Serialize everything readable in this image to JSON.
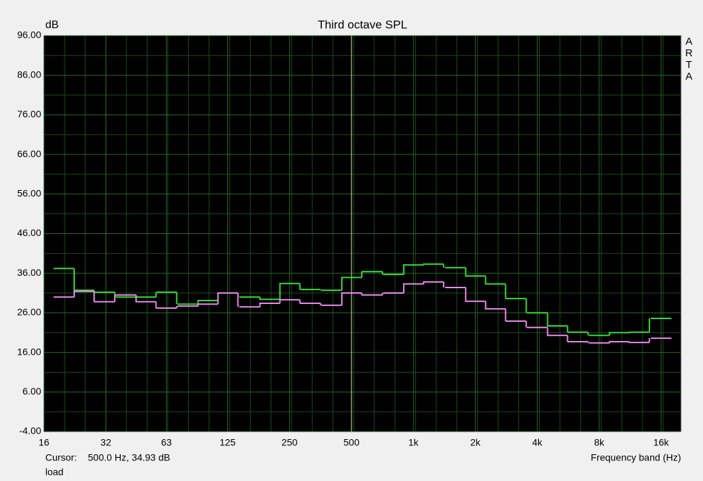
{
  "chart_data": {
    "type": "line",
    "drawstyle": "steps-mid",
    "title": "Third octave SPL",
    "y_label": "dB",
    "x_label": "Frequency band (Hz)",
    "side_label": "ARTA",
    "x_scale": "log",
    "grid": true,
    "x": [
      20,
      25,
      31.5,
      40,
      50,
      63,
      80,
      100,
      125,
      160,
      200,
      250,
      315,
      400,
      500,
      630,
      800,
      1000,
      1250,
      1600,
      2000,
      2500,
      3150,
      4000,
      5000,
      6300,
      8000,
      10000,
      12500,
      16000
    ],
    "series": [
      {
        "color": "#33dd33",
        "values": [
          37.2,
          31.7,
          31.2,
          30.0,
          30.0,
          31.2,
          28.2,
          29.1,
          31.0,
          30.0,
          29.4,
          33.4,
          31.9,
          31.7,
          34.93,
          36.4,
          35.7,
          38.1,
          38.3,
          37.4,
          35.3,
          33.3,
          29.6,
          26.0,
          22.7,
          21.1,
          20.3,
          21.0,
          21.1,
          24.6
        ]
      },
      {
        "color": "#ee88ee",
        "values": [
          30.0,
          31.4,
          28.8,
          30.5,
          28.8,
          27.2,
          27.7,
          28.2,
          31.0,
          27.5,
          28.4,
          29.3,
          28.4,
          27.9,
          31.0,
          30.5,
          31.0,
          33.3,
          33.8,
          32.4,
          28.9,
          27.0,
          23.9,
          22.3,
          20.3,
          18.7,
          18.4,
          18.7,
          18.5,
          19.6
        ]
      }
    ],
    "xlim": [
      16,
      20000
    ],
    "xticks": [
      16,
      32,
      63,
      125,
      250,
      500,
      {
        "value": 1000,
        "label": "1k"
      },
      {
        "value": 2000,
        "label": "2k"
      },
      {
        "value": 4000,
        "label": "4k"
      },
      {
        "value": 8000,
        "label": "8k"
      },
      {
        "value": 16000,
        "label": "16k"
      }
    ],
    "ylim": [
      -4,
      96
    ],
    "yticks": [
      {
        "value": -4,
        "label": "-4.00"
      },
      {
        "value": 6,
        "label": "6.00"
      },
      {
        "value": 16,
        "label": "16.00"
      },
      {
        "value": 26,
        "label": "26.00"
      },
      {
        "value": 36,
        "label": "36.00"
      },
      {
        "value": 46,
        "label": "46.00"
      },
      {
        "value": 56,
        "label": "56.00"
      },
      {
        "value": 66,
        "label": "66.00"
      },
      {
        "value": 76,
        "label": "76.00"
      },
      {
        "value": 86,
        "label": "86.00"
      },
      {
        "value": 96,
        "label": "96.00"
      }
    ],
    "cursor": {
      "x": 500,
      "label": "Cursor:",
      "readout": "500.0 Hz, 34.93 dB"
    },
    "footer": "load"
  }
}
